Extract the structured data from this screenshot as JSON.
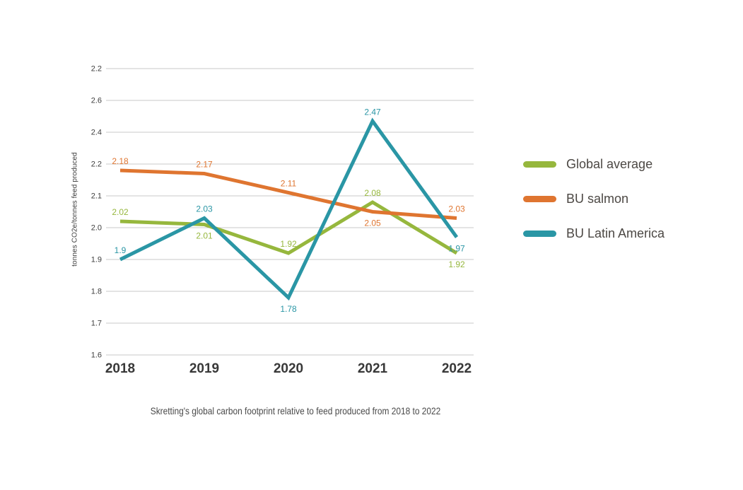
{
  "page": {
    "background": "#ffffff"
  },
  "chart_data": {
    "type": "line",
    "caption": "Skretting's global carbon footprint relative to feed produced from 2018 to 2022",
    "ylabel": "tonnes CO2e/tonnes feed produced",
    "xlabel": "",
    "categories": [
      "2018",
      "2019",
      "2020",
      "2021",
      "2022"
    ],
    "y_axis_tick_labels_top_to_bottom": [
      "2.2",
      "2.6",
      "2.4",
      "2.2",
      "2.1",
      "2.0",
      "1.9",
      "1.8",
      "1.7",
      "1.6"
    ],
    "y_axis_scale_note": "evenly spaced gridlines; 0.1 steps from 1.6 to 2.2, 0.2 steps above 2.2",
    "grid": true,
    "legend_position": "right",
    "series": [
      {
        "name": "Global average",
        "color": "#96B73D",
        "values": [
          2.02,
          2.01,
          1.92,
          2.08,
          1.92
        ],
        "labels": [
          "2.02",
          "2.01",
          "1.92",
          "2.08",
          "1.92"
        ],
        "label_side": [
          "above",
          "below",
          "above",
          "above",
          "below"
        ]
      },
      {
        "name": "BU salmon",
        "color": "#DF7530",
        "values": [
          2.18,
          2.17,
          2.11,
          2.05,
          2.03
        ],
        "labels": [
          "2.18",
          "2.17",
          "2.11",
          "2.05",
          "2.03"
        ],
        "label_side": [
          "above",
          "above",
          "above",
          "below",
          "above"
        ]
      },
      {
        "name": "BU Latin America",
        "color": "#2A96A5",
        "values": [
          1.9,
          2.03,
          1.78,
          2.47,
          1.97
        ],
        "labels": [
          "1.9",
          "2.03",
          "1.78",
          "2.47",
          "1.97"
        ],
        "label_side": [
          "above",
          "above",
          "below",
          "above",
          "below"
        ]
      }
    ]
  },
  "colors": {
    "gridline": "#c8c8c8",
    "tick_text": "#3e3e3e",
    "year_text": "#383838",
    "legend_text": "#4c4844",
    "caption_text": "#4a4a4a"
  }
}
